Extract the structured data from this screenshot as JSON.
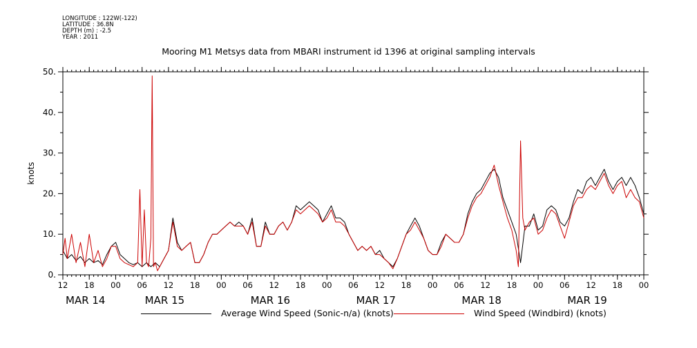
{
  "header": {
    "longitude": "LONGITUDE : 122W(-122)",
    "latitude": "LATITUDE : 36.8N",
    "depth": "DEPTH (m) : -2.5",
    "year": "YEAR : 2011"
  },
  "colors": {
    "series1": "#000000",
    "series2": "#cc0000",
    "axis": "#000000"
  },
  "chart_data": {
    "type": "line",
    "title": "Mooring M1 Metsys data from MBARI instrument id 1396 at original sampling intervals",
    "ylabel": "knots",
    "xlabel": "",
    "ylim": [
      0,
      50
    ],
    "y_ticks": [
      0,
      10,
      20,
      30,
      40,
      50
    ],
    "y_tick_labels": [
      "0.",
      "10.",
      "20.",
      "30.",
      "40.",
      "50."
    ],
    "xlim": [
      12,
      144
    ],
    "x_units": "hours since MAR 14 00:00 (2011)",
    "x_tick_labels": [
      {
        "x": 12,
        "label": "12"
      },
      {
        "x": 18,
        "label": "18"
      },
      {
        "x": 24,
        "label": "00"
      },
      {
        "x": 30,
        "label": "06"
      },
      {
        "x": 36,
        "label": "12"
      },
      {
        "x": 42,
        "label": "18"
      },
      {
        "x": 48,
        "label": "00"
      },
      {
        "x": 54,
        "label": "06"
      },
      {
        "x": 60,
        "label": "12"
      },
      {
        "x": 66,
        "label": "18"
      },
      {
        "x": 72,
        "label": "00"
      },
      {
        "x": 78,
        "label": "06"
      },
      {
        "x": 84,
        "label": "12"
      },
      {
        "x": 90,
        "label": "18"
      },
      {
        "x": 96,
        "label": "00"
      },
      {
        "x": 102,
        "label": "06"
      },
      {
        "x": 108,
        "label": "12"
      },
      {
        "x": 114,
        "label": "18"
      },
      {
        "x": 120,
        "label": "00"
      },
      {
        "x": 126,
        "label": "06"
      },
      {
        "x": 132,
        "label": "12"
      },
      {
        "x": 138,
        "label": "18"
      },
      {
        "x": 144,
        "label": "00"
      }
    ],
    "day_labels": [
      {
        "x": 12,
        "label": "MAR 14"
      },
      {
        "x": 30,
        "label": "MAR 15"
      },
      {
        "x": 54,
        "label": "MAR 16"
      },
      {
        "x": 78,
        "label": "MAR 17"
      },
      {
        "x": 102,
        "label": "MAR 18"
      },
      {
        "x": 126,
        "label": "MAR 19"
      }
    ],
    "legend_placement": "bottom",
    "series": [
      {
        "name": "Average Wind Speed (Sonic-n/a) (knots)",
        "color": "#000000",
        "points": [
          [
            12,
            6
          ],
          [
            13,
            4
          ],
          [
            14,
            5
          ],
          [
            15,
            3.5
          ],
          [
            16,
            4.5
          ],
          [
            17,
            3
          ],
          [
            18,
            4
          ],
          [
            19,
            3
          ],
          [
            20,
            3.5
          ],
          [
            21,
            2.5
          ],
          [
            22,
            5
          ],
          [
            23,
            7
          ],
          [
            24,
            8
          ],
          [
            25,
            5
          ],
          [
            26,
            4
          ],
          [
            27,
            3
          ],
          [
            28,
            2.5
          ],
          [
            29,
            3
          ],
          [
            30,
            2
          ],
          [
            31,
            3
          ],
          [
            32,
            2
          ],
          [
            33,
            3
          ],
          [
            34,
            2
          ],
          [
            35,
            4
          ],
          [
            36,
            6
          ],
          [
            37,
            14
          ],
          [
            38,
            8
          ],
          [
            39,
            6
          ],
          [
            40,
            7
          ],
          [
            41,
            8
          ],
          [
            42,
            3
          ],
          [
            43,
            3
          ],
          [
            44,
            5
          ],
          [
            45,
            8
          ],
          [
            46,
            10
          ],
          [
            47,
            10
          ],
          [
            48,
            11
          ],
          [
            49,
            12
          ],
          [
            50,
            13
          ],
          [
            51,
            12
          ],
          [
            52,
            13
          ],
          [
            53,
            12
          ],
          [
            54,
            10
          ],
          [
            55,
            14
          ],
          [
            56,
            7
          ],
          [
            57,
            7
          ],
          [
            58,
            13
          ],
          [
            59,
            10
          ],
          [
            60,
            10
          ],
          [
            61,
            12
          ],
          [
            62,
            13
          ],
          [
            63,
            11
          ],
          [
            64,
            13
          ],
          [
            65,
            17
          ],
          [
            66,
            16
          ],
          [
            67,
            17
          ],
          [
            68,
            18
          ],
          [
            69,
            17
          ],
          [
            70,
            16
          ],
          [
            71,
            13
          ],
          [
            72,
            15
          ],
          [
            73,
            17
          ],
          [
            74,
            14
          ],
          [
            75,
            14
          ],
          [
            76,
            13
          ],
          [
            77,
            10
          ],
          [
            78,
            8
          ],
          [
            79,
            6
          ],
          [
            80,
            7
          ],
          [
            81,
            6
          ],
          [
            82,
            7
          ],
          [
            83,
            5
          ],
          [
            84,
            6
          ],
          [
            85,
            4
          ],
          [
            86,
            3
          ],
          [
            87,
            2
          ],
          [
            88,
            4
          ],
          [
            89,
            7
          ],
          [
            90,
            10
          ],
          [
            91,
            12
          ],
          [
            92,
            14
          ],
          [
            93,
            12
          ],
          [
            94,
            9
          ],
          [
            95,
            6
          ],
          [
            96,
            5
          ],
          [
            97,
            5
          ],
          [
            98,
            8
          ],
          [
            99,
            10
          ],
          [
            100,
            9
          ],
          [
            101,
            8
          ],
          [
            102,
            8
          ],
          [
            103,
            10
          ],
          [
            104,
            15
          ],
          [
            105,
            18
          ],
          [
            106,
            20
          ],
          [
            107,
            21
          ],
          [
            108,
            23
          ],
          [
            109,
            25
          ],
          [
            110,
            26
          ],
          [
            111,
            24
          ],
          [
            112,
            19
          ],
          [
            113,
            16
          ],
          [
            114,
            13
          ],
          [
            115,
            10
          ],
          [
            116,
            3
          ],
          [
            117,
            12
          ],
          [
            118,
            12
          ],
          [
            119,
            15
          ],
          [
            120,
            11
          ],
          [
            121,
            12
          ],
          [
            122,
            16
          ],
          [
            123,
            17
          ],
          [
            124,
            16
          ],
          [
            125,
            13
          ],
          [
            126,
            12
          ],
          [
            127,
            14
          ],
          [
            128,
            18
          ],
          [
            129,
            21
          ],
          [
            130,
            20
          ],
          [
            131,
            23
          ],
          [
            132,
            24
          ],
          [
            133,
            22
          ],
          [
            134,
            24
          ],
          [
            135,
            26
          ],
          [
            136,
            23
          ],
          [
            137,
            21
          ],
          [
            138,
            23
          ],
          [
            139,
            24
          ],
          [
            140,
            22
          ],
          [
            141,
            24
          ],
          [
            142,
            22
          ],
          [
            143,
            19
          ],
          [
            144,
            15
          ]
        ]
      },
      {
        "name": "Wind Speed (Windbird) (knots)",
        "color": "#cc0000",
        "points": [
          [
            12,
            5
          ],
          [
            12.5,
            9
          ],
          [
            13,
            4
          ],
          [
            14,
            10
          ],
          [
            15,
            3
          ],
          [
            16,
            8
          ],
          [
            17,
            2
          ],
          [
            18,
            10
          ],
          [
            19,
            3
          ],
          [
            20,
            6
          ],
          [
            21,
            2
          ],
          [
            22,
            4
          ],
          [
            23,
            7
          ],
          [
            24,
            7
          ],
          [
            25,
            4
          ],
          [
            26,
            3
          ],
          [
            27,
            2.5
          ],
          [
            28,
            2
          ],
          [
            29,
            3
          ],
          [
            29.5,
            21
          ],
          [
            30,
            2
          ],
          [
            30.5,
            16
          ],
          [
            31,
            3
          ],
          [
            31.5,
            2
          ],
          [
            32,
            9
          ],
          [
            32.3,
            49
          ],
          [
            32.6,
            2
          ],
          [
            33,
            3
          ],
          [
            33.5,
            1
          ],
          [
            34,
            2
          ],
          [
            35,
            4
          ],
          [
            36,
            6
          ],
          [
            37,
            13
          ],
          [
            38,
            7
          ],
          [
            39,
            6
          ],
          [
            40,
            7
          ],
          [
            41,
            8
          ],
          [
            42,
            3
          ],
          [
            43,
            3
          ],
          [
            44,
            5
          ],
          [
            45,
            8
          ],
          [
            46,
            10
          ],
          [
            47,
            10
          ],
          [
            48,
            11
          ],
          [
            49,
            12
          ],
          [
            50,
            13
          ],
          [
            51,
            12
          ],
          [
            52,
            12
          ],
          [
            53,
            12
          ],
          [
            54,
            10
          ],
          [
            55,
            13
          ],
          [
            56,
            7
          ],
          [
            57,
            7
          ],
          [
            58,
            12
          ],
          [
            59,
            10
          ],
          [
            60,
            10
          ],
          [
            61,
            12
          ],
          [
            62,
            13
          ],
          [
            63,
            11
          ],
          [
            64,
            13
          ],
          [
            65,
            16
          ],
          [
            66,
            15
          ],
          [
            67,
            16
          ],
          [
            68,
            17
          ],
          [
            69,
            16
          ],
          [
            70,
            15
          ],
          [
            71,
            13
          ],
          [
            72,
            14
          ],
          [
            73,
            16
          ],
          [
            74,
            13
          ],
          [
            75,
            13
          ],
          [
            76,
            12
          ],
          [
            77,
            10
          ],
          [
            78,
            8
          ],
          [
            79,
            6
          ],
          [
            80,
            7
          ],
          [
            81,
            6
          ],
          [
            82,
            7
          ],
          [
            83,
            5
          ],
          [
            84,
            5
          ],
          [
            85,
            4
          ],
          [
            86,
            3
          ],
          [
            87,
            1.5
          ],
          [
            88,
            4
          ],
          [
            89,
            7
          ],
          [
            90,
            10
          ],
          [
            91,
            11
          ],
          [
            92,
            13
          ],
          [
            93,
            11
          ],
          [
            94,
            9
          ],
          [
            95,
            6
          ],
          [
            96,
            5
          ],
          [
            97,
            5
          ],
          [
            98,
            7
          ],
          [
            99,
            10
          ],
          [
            100,
            9
          ],
          [
            101,
            8
          ],
          [
            102,
            8
          ],
          [
            103,
            10
          ],
          [
            104,
            14
          ],
          [
            105,
            17
          ],
          [
            106,
            19
          ],
          [
            107,
            20
          ],
          [
            108,
            22
          ],
          [
            109,
            24
          ],
          [
            110,
            27
          ],
          [
            111,
            22
          ],
          [
            112,
            18
          ],
          [
            113,
            14
          ],
          [
            114,
            11
          ],
          [
            115,
            6
          ],
          [
            115.5,
            2
          ],
          [
            116,
            33
          ],
          [
            116.5,
            14
          ],
          [
            117,
            11
          ],
          [
            118,
            13
          ],
          [
            119,
            14
          ],
          [
            120,
            10
          ],
          [
            121,
            11
          ],
          [
            122,
            14
          ],
          [
            123,
            16
          ],
          [
            124,
            15
          ],
          [
            125,
            12
          ],
          [
            126,
            9
          ],
          [
            127,
            13
          ],
          [
            128,
            17
          ],
          [
            129,
            19
          ],
          [
            130,
            19
          ],
          [
            131,
            21
          ],
          [
            132,
            22
          ],
          [
            133,
            21
          ],
          [
            134,
            23
          ],
          [
            135,
            25
          ],
          [
            136,
            22
          ],
          [
            137,
            20
          ],
          [
            138,
            22
          ],
          [
            139,
            23
          ],
          [
            140,
            19
          ],
          [
            141,
            21
          ],
          [
            142,
            19
          ],
          [
            143,
            18
          ],
          [
            144,
            14
          ]
        ]
      }
    ]
  }
}
